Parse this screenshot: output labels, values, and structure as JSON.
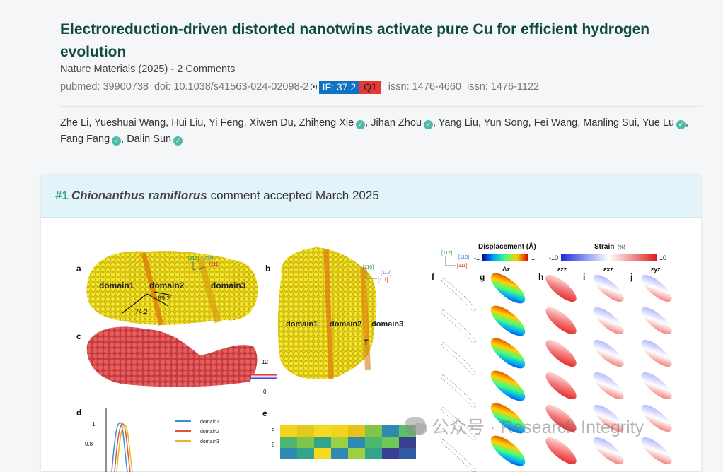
{
  "article": {
    "title": "Electroreduction-driven distorted nanotwins activate pure Cu for efficient hydrogen evolution",
    "journal_line": "Nature Materials (2025) - 2 Comments",
    "pubmed": "pubmed: 39900738",
    "doi": "doi: 10.1038/s41563-024-02098-2",
    "altmetric_glyph": "(•)",
    "if_badge": "IF: 37.2",
    "quartile": "Q1",
    "issn1": "issn: 1476-4660",
    "issn2": "issn: 1476-1122"
  },
  "authors": [
    {
      "name": "Zhe Li",
      "verified": false
    },
    {
      "name": "Yueshuai Wang",
      "verified": false
    },
    {
      "name": "Hui Liu",
      "verified": false
    },
    {
      "name": "Yi Feng",
      "verified": false
    },
    {
      "name": "Xiwen Du",
      "verified": false
    },
    {
      "name": "Zhiheng Xie",
      "verified": true
    },
    {
      "name": "Jihan Zhou",
      "verified": true
    },
    {
      "name": "Yang Liu",
      "verified": false
    },
    {
      "name": "Yun Song",
      "verified": false
    },
    {
      "name": "Fei Wang",
      "verified": false
    },
    {
      "name": "Manling Sui",
      "verified": false
    },
    {
      "name": "Yue Lu",
      "verified": true
    },
    {
      "name": "Fang Fang",
      "verified": true
    },
    {
      "name": "Dalin Sun",
      "verified": true
    }
  ],
  "comment": {
    "number": "#1",
    "commenter": "Chionanthus ramiflorus",
    "status": "comment accepted March 2025"
  },
  "figure": {
    "panel_labels": [
      "a",
      "b",
      "c",
      "d",
      "e",
      "f",
      "g",
      "h",
      "i",
      "j"
    ],
    "domain_labels": [
      "domain1",
      "domain2",
      "domain3"
    ],
    "angle_labels": [
      "74.2",
      "69.2"
    ],
    "twin_label": "T",
    "colorbar_c": {
      "max": "12",
      "min": "0"
    },
    "displacement_title": "Displacement (Å)",
    "displacement_range": {
      "min": "-1",
      "max": "1"
    },
    "strain_title": "Strain",
    "strain_unit": "(%)",
    "strain_range": {
      "min": "-10",
      "max": "10"
    },
    "column_heads": [
      "Δz",
      "εzz",
      "εxz",
      "εyz"
    ],
    "legend_d": [
      "domain1",
      "domain2",
      "domain3"
    ],
    "axis_d": [
      "1",
      "0.8"
    ],
    "axis_e": [
      "9",
      "8"
    ],
    "orient_a": [
      "[112]",
      "[110]",
      "[111]"
    ],
    "orient_b": [
      "[110]",
      "[112]",
      "[111]"
    ],
    "orient_f": [
      "[112]",
      "[110]",
      "[111]"
    ]
  },
  "watermark": {
    "text": "公众号 · Research Integrity"
  },
  "colors": {
    "title": "#0d4a40",
    "if_badge": "#1272c2",
    "q1_badge": "#e53935",
    "verified": "#4fb9a6",
    "card_header": "#e3f3fa",
    "comment_number": "#39a37a"
  }
}
